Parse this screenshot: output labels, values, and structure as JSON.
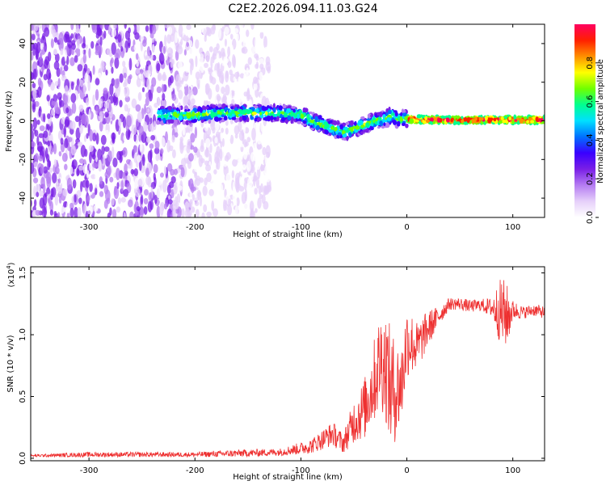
{
  "title": "C2E2.2026.094.11.03.G24",
  "chart_data": [
    {
      "type": "heatmap",
      "name": "spectrogram",
      "xlabel": "Height of straight line (km)",
      "ylabel": "Frequency (Hz)",
      "xlim": [
        -355,
        130
      ],
      "ylim": [
        -50,
        50
      ],
      "xticks": [
        -300,
        -200,
        -100,
        0,
        100
      ],
      "yticks": [
        -40,
        -20,
        0,
        20,
        40
      ],
      "xtick_labels": [
        "-300",
        "-200",
        "-100",
        "0",
        "100"
      ],
      "ytick_labels": [
        "-40",
        "-20",
        "0",
        "20",
        "40"
      ],
      "colorbar": {
        "label": "Normalized spectral amplitude",
        "range": [
          0,
          1
        ],
        "ticks": [
          0.0,
          0.2,
          0.4,
          0.6,
          0.8
        ],
        "tick_labels": [
          "0.0",
          "0.2",
          "0.4",
          "0.6",
          "0.8"
        ],
        "colormap": [
          "#ffffff",
          "#e6d0fa",
          "#b57cf2",
          "#7a1fe6",
          "#3a00ff",
          "#0070ff",
          "#00e0ff",
          "#00ff90",
          "#70ff00",
          "#ffff00",
          "#ff9000",
          "#ff2000",
          "#ff0060"
        ]
      },
      "ridge": {
        "x": [
          -235,
          -220,
          -200,
          -180,
          -160,
          -140,
          -120,
          -100,
          -90,
          -80,
          -70,
          -60,
          -50,
          -40,
          -30,
          -20,
          -15,
          -10,
          0,
          20,
          60,
          100,
          130
        ],
        "y": [
          3,
          3,
          3,
          4,
          4,
          4,
          4,
          3,
          0,
          -2,
          -4,
          -6,
          -4,
          -2,
          0,
          1,
          3,
          1,
          1,
          0.5,
          0.5,
          0.5,
          0.5
        ]
      },
      "noise_region": {
        "xlim": [
          -355,
          -130
        ],
        "ylim": [
          -50,
          50
        ]
      }
    },
    {
      "type": "line",
      "name": "snr",
      "xlabel": "Height of straight line (km)",
      "ylabel": "SNR (10 * v/v)",
      "scale_label": "(x10",
      "scale_exp": "4",
      "scale_close": ")",
      "xlim": [
        -355,
        130
      ],
      "ylim": [
        -0.02,
        1.55
      ],
      "xticks": [
        -300,
        -200,
        -100,
        0,
        100
      ],
      "yticks": [
        0.0,
        0.5,
        1.0,
        1.5
      ],
      "xtick_labels": [
        "-300",
        "-200",
        "-100",
        "0",
        "100"
      ],
      "ytick_labels": [
        "0.0",
        "0.5",
        "1.0",
        "1.5"
      ],
      "color": "#ee3030",
      "series": [
        {
          "name": "SNR",
          "x": [
            -355,
            -300,
            -250,
            -200,
            -160,
            -120,
            -100,
            -90,
            -80,
            -70,
            -60,
            -50,
            -40,
            -30,
            -25,
            -20,
            -15,
            -10,
            -5,
            0,
            10,
            20,
            30,
            40,
            50,
            60,
            70,
            80,
            85,
            90,
            95,
            100,
            110,
            120,
            130
          ],
          "y": [
            0.02,
            0.03,
            0.03,
            0.03,
            0.04,
            0.05,
            0.08,
            0.1,
            0.15,
            0.2,
            0.12,
            0.3,
            0.4,
            0.65,
            0.8,
            0.75,
            0.55,
            0.55,
            0.6,
            0.95,
            0.9,
            1.05,
            1.15,
            1.25,
            1.25,
            1.23,
            1.24,
            1.22,
            1.2,
            1.18,
            1.15,
            1.2,
            1.18,
            1.2,
            1.18
          ],
          "noise": [
            0.01,
            0.02,
            0.02,
            0.02,
            0.03,
            0.03,
            0.05,
            0.06,
            0.08,
            0.1,
            0.08,
            0.18,
            0.25,
            0.35,
            0.4,
            0.45,
            0.5,
            0.4,
            0.35,
            0.3,
            0.2,
            0.15,
            0.08,
            0.05,
            0.05,
            0.05,
            0.05,
            0.08,
            0.2,
            0.3,
            0.25,
            0.08,
            0.05,
            0.05,
            0.05
          ]
        }
      ]
    }
  ]
}
